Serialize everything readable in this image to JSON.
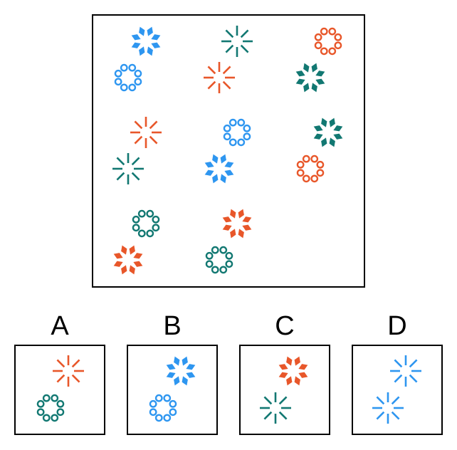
{
  "colors": {
    "blue": "#2e96f0",
    "teal": "#127872",
    "orange": "#e8572a",
    "border": "#000000"
  },
  "matrix": {
    "cells": [
      [
        {
          "top": [
            "diamonds-icon",
            "blue"
          ],
          "bottom": [
            "ring-icon",
            "blue"
          ]
        },
        {
          "top": [
            "burst-icon",
            "teal"
          ],
          "bottom": [
            "burst-icon",
            "orange"
          ]
        },
        {
          "top": [
            "ring-icon",
            "orange"
          ],
          "bottom": [
            "diamonds-icon",
            "teal"
          ]
        }
      ],
      [
        {
          "top": [
            "burst-icon",
            "orange"
          ],
          "bottom": [
            "burst-icon",
            "teal"
          ]
        },
        {
          "top": [
            "ring-icon",
            "blue"
          ],
          "bottom": [
            "diamonds-icon",
            "blue"
          ]
        },
        {
          "top": [
            "diamonds-icon",
            "teal"
          ],
          "bottom": [
            "ring-icon",
            "orange"
          ]
        }
      ],
      [
        {
          "top": [
            "ring-icon",
            "teal"
          ],
          "bottom": [
            "diamonds-icon",
            "orange"
          ]
        },
        {
          "top": [
            "diamonds-icon",
            "orange"
          ],
          "bottom": [
            "ring-icon",
            "teal"
          ]
        },
        null
      ]
    ]
  },
  "options": [
    {
      "label": "A",
      "top": [
        "burst-icon",
        "orange"
      ],
      "bottom": [
        "ring-icon",
        "teal"
      ]
    },
    {
      "label": "B",
      "top": [
        "diamonds-icon",
        "blue"
      ],
      "bottom": [
        "ring-icon",
        "blue"
      ]
    },
    {
      "label": "C",
      "top": [
        "diamonds-icon",
        "orange"
      ],
      "bottom": [
        "burst-icon",
        "teal"
      ]
    },
    {
      "label": "D",
      "top": [
        "burst-icon",
        "blue"
      ],
      "bottom": [
        "burst-icon",
        "blue"
      ]
    }
  ]
}
